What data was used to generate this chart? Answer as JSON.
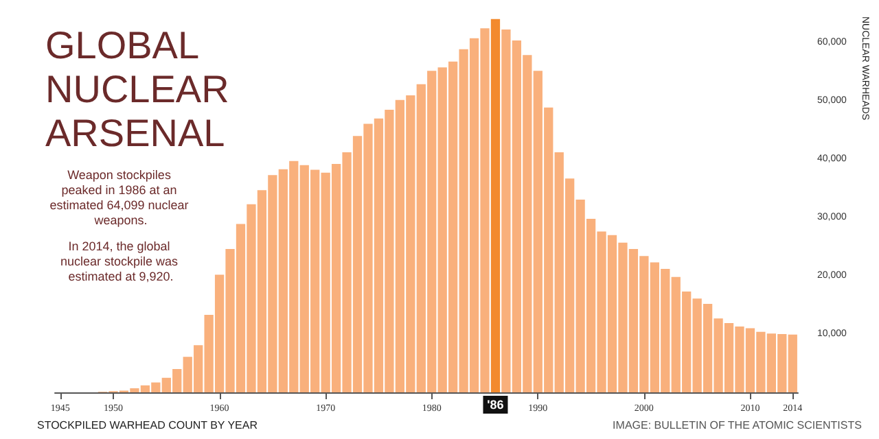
{
  "chart_data": {
    "type": "bar",
    "title": "GLOBAL\nNUCLEAR\nARSENAL",
    "xlabel": "STOCKPILED WARHEAD COUNT BY YEAR",
    "ylabel": "NUCLEAR WARHEADS",
    "x": [
      1945,
      1946,
      1947,
      1948,
      1949,
      1950,
      1951,
      1952,
      1953,
      1954,
      1955,
      1956,
      1957,
      1958,
      1959,
      1960,
      1961,
      1962,
      1963,
      1964,
      1965,
      1966,
      1967,
      1968,
      1969,
      1970,
      1971,
      1972,
      1973,
      1974,
      1975,
      1976,
      1977,
      1978,
      1979,
      1980,
      1981,
      1982,
      1983,
      1984,
      1985,
      1986,
      1987,
      1988,
      1989,
      1990,
      1991,
      1992,
      1993,
      1994,
      1995,
      1996,
      1997,
      1998,
      1999,
      2000,
      2001,
      2002,
      2003,
      2004,
      2005,
      2006,
      2007,
      2008,
      2009,
      2010,
      2011,
      2012,
      2013,
      2014
    ],
    "values": [
      0,
      0,
      0,
      0,
      100,
      200,
      300,
      700,
      1200,
      1700,
      2500,
      4000,
      6100,
      8100,
      13300,
      20200,
      24600,
      28900,
      32300,
      34700,
      37300,
      38300,
      39700,
      39000,
      38200,
      37700,
      39200,
      41200,
      44000,
      46100,
      47000,
      48500,
      50200,
      51000,
      52900,
      55200,
      55800,
      56800,
      58900,
      60800,
      62500,
      64099,
      62300,
      60400,
      57900,
      55200,
      48900,
      41200,
      36700,
      33100,
      29800,
      27600,
      27000,
      25700,
      24600,
      23400,
      22300,
      21200,
      19800,
      17300,
      16100,
      15200,
      12700,
      11900,
      11300,
      11000,
      10400,
      10100,
      10000,
      9920
    ],
    "colors": [
      "#f9b07c",
      "#f9b07c",
      "#f9b07c",
      "#f9b07c",
      "#f9b07c",
      "#f9b07c",
      "#f9b07c",
      "#f9b07c",
      "#f9b07c",
      "#f9b07c",
      "#f9b07c",
      "#f9b07c",
      "#f9b07c",
      "#f9b07c",
      "#f9b07c",
      "#f9b07c",
      "#f9b07c",
      "#f9b07c",
      "#f9b07c",
      "#f9b07c",
      "#f9b07c",
      "#f9b07c",
      "#f9b07c",
      "#f9b07c",
      "#f9b07c",
      "#f9b07c",
      "#f9b07c",
      "#f9b07c",
      "#f9b07c",
      "#f9b07c",
      "#f9b07c",
      "#f9b07c",
      "#f9b07c",
      "#f9b07c",
      "#f9b07c",
      "#f9b07c",
      "#f9b07c",
      "#f9b07c",
      "#f9b07c",
      "#f9b07c",
      "#f9b07c",
      "#f38a2e",
      "#f9b07c",
      "#f9b07c",
      "#f9b07c",
      "#f9b07c",
      "#f9b07c",
      "#f9b07c",
      "#f9b07c",
      "#f9b07c",
      "#f9b07c",
      "#f9b07c",
      "#f9b07c",
      "#f9b07c",
      "#f9b07c",
      "#f9b07c",
      "#f9b07c",
      "#f9b07c",
      "#f9b07c",
      "#f9b07c",
      "#f9b07c",
      "#f9b07c",
      "#f9b07c",
      "#f9b07c",
      "#f9b07c",
      "#f9b07c",
      "#f9b07c",
      "#f9b07c",
      "#f9b07c",
      "#f9b07c"
    ],
    "xlim": [
      1944.5,
      2014.5
    ],
    "xticks": [
      1945,
      1950,
      1960,
      1970,
      1980,
      1990,
      2000,
      2010,
      2014
    ],
    "ylim": [
      0,
      65000
    ],
    "yticks": [
      {
        "value": 10000,
        "label": "10,000"
      },
      {
        "value": 20000,
        "label": "20,000"
      },
      {
        "value": 30000,
        "label": "30,000"
      },
      {
        "value": 40000,
        "label": "40,000"
      },
      {
        "value": 50000,
        "label": "50,000"
      },
      {
        "value": 60000,
        "label": "60,000"
      }
    ],
    "grid": false,
    "annotations": [
      "Weapon stockpiles peaked in 1986 at an estimated 64,099 nuclear weapons.",
      "In 2014, the global nuclear stockpile was estimated at 9,920.",
      {
        "text": "'86",
        "x": 1986,
        "y": 0
      },
      "IMAGE: BULLETIN OF THE ATOMIC SCIENTISTS"
    ]
  }
}
